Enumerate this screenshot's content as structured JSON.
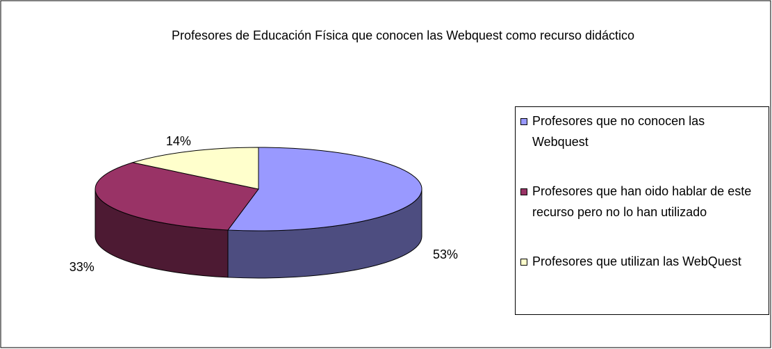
{
  "chart_data": {
    "type": "pie3d",
    "title": "Profesores de Educación Física que conocen las Webquest como recurso didáctico",
    "categories": [
      "Profesores que no conocen las Webquest",
      "Profesores que han oido hablar de este recurso pero no lo han utilizado",
      "Profesores que utilizan las WebQuest"
    ],
    "values": [
      53,
      33,
      14
    ],
    "value_labels": [
      "53%",
      "33%",
      "14%"
    ],
    "colors": [
      "#9999ff",
      "#993366",
      "#ffffcc"
    ],
    "legend": "right"
  }
}
